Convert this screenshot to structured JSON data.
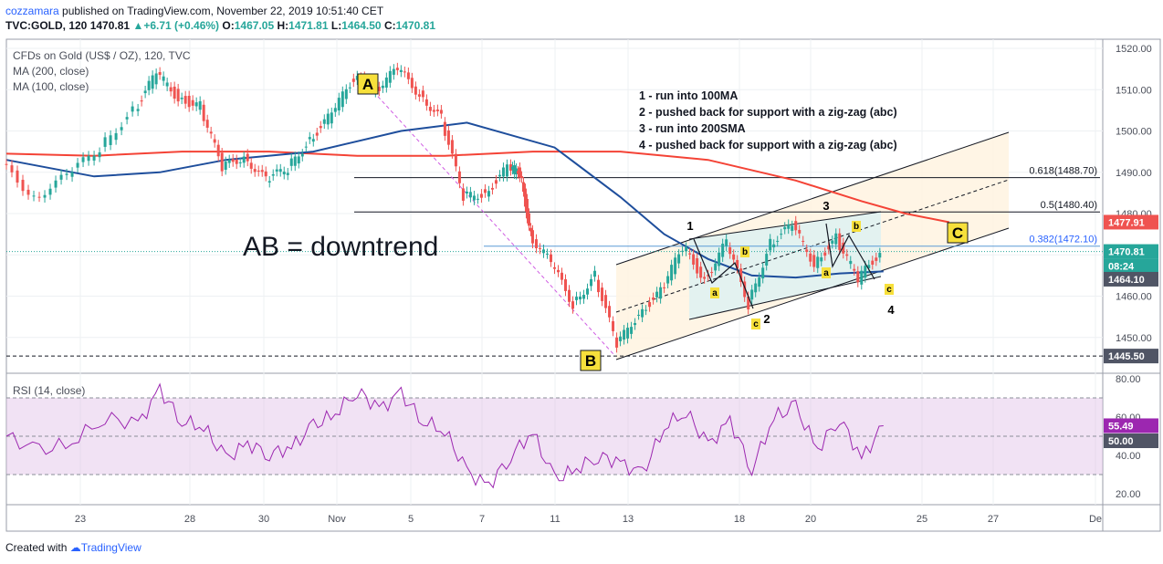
{
  "header": {
    "author": "cozzamara",
    "published_text": "published on TradingView.com, November 22, 2019 10:51:40 CET",
    "symbol_line": "TVC:GOLD, 120",
    "last": "1470.81",
    "change": "+6.71 (+0.46%)",
    "o_label": "O:",
    "o": "1467.05",
    "h_label": "H:",
    "h": "1471.81",
    "l_label": "L:",
    "l": "1464.50",
    "c_label": "C:",
    "c": "1470.81"
  },
  "legend": {
    "title": "CFDs on Gold (US$ / OZ), 120, TVC",
    "ma200": "MA (200, close)",
    "ma100": "MA (100, close)",
    "rsi": "RSI (14, close)"
  },
  "annotations": {
    "wave_a": "A",
    "wave_b": "B",
    "wave_c": "C",
    "downtrend": "AB = downtrend",
    "notes": [
      "1 - run into 100MA",
      "2 - pushed back for support with a zig-zag (abc)",
      "3 - run into 200SMA",
      "4 - pushed back for support with a zig-zag (abc)"
    ],
    "points": [
      "1",
      "2",
      "3",
      "4"
    ],
    "zigzag": [
      "a",
      "b",
      "c",
      "a",
      "b",
      "c"
    ]
  },
  "footer": {
    "created_with": "Created with",
    "brand": "TradingView"
  },
  "colors": {
    "up": "#26a69a",
    "down": "#ef5350",
    "ma200": "#f44336",
    "ma100": "#1e4e9c",
    "rsi": "#9c27b0",
    "rsi_band": "#e1bee7",
    "channel": "#fff3e0",
    "box": "#e0f2f1",
    "label_bg": "#f7e03b"
  },
  "chart_data": {
    "type": "line",
    "title": "CFDs on Gold (US$ / OZ), 120, TVC",
    "x_ticks": [
      "23",
      "28",
      "30",
      "Nov",
      "5",
      "7",
      "11",
      "13",
      "18",
      "20",
      "25",
      "27",
      "De"
    ],
    "price_axis": {
      "min": 1440,
      "max": 1520,
      "ticks": [
        1450,
        1460,
        1470,
        1480,
        1490,
        1500,
        1510,
        1520
      ]
    },
    "series": [
      {
        "name": "MA (200, close)",
        "x": [
          0,
          8,
          16,
          24,
          32,
          40,
          48,
          56,
          64,
          72,
          78,
          82,
          86
        ],
        "y": [
          1494.5,
          1494,
          1495,
          1495,
          1494,
          1494,
          1495,
          1495,
          1493,
          1488,
          1483,
          1480,
          1477.91
        ]
      },
      {
        "name": "MA (100, close)",
        "x": [
          0,
          8,
          14,
          20,
          28,
          36,
          42,
          50,
          56,
          60,
          64,
          68,
          72,
          76,
          80
        ],
        "y": [
          1493,
          1489,
          1490,
          1493,
          1495,
          1500,
          1502,
          1496,
          1484,
          1475,
          1469,
          1465,
          1464.5,
          1465.5,
          1466
        ]
      },
      {
        "name": "Price",
        "x": [
          0,
          3,
          6,
          9,
          12,
          14,
          16,
          18,
          20,
          22,
          24,
          26,
          28,
          30,
          32,
          34,
          36,
          38,
          40,
          42,
          44,
          46,
          47,
          48,
          50,
          52,
          54,
          56,
          58,
          60,
          62,
          64,
          66,
          68,
          70,
          72,
          74,
          76,
          78,
          80
        ],
        "y": [
          1492,
          1484,
          1489,
          1496,
          1505,
          1514,
          1508,
          1506,
          1491,
          1494,
          1488,
          1491,
          1498,
          1504,
          1513,
          1510,
          1515,
          1509,
          1503,
          1484,
          1485,
          1491,
          1490,
          1475,
          1468,
          1458,
          1465,
          1448,
          1456,
          1461,
          1472,
          1464,
          1473,
          1458,
          1473,
          1477,
          1468,
          1474,
          1464,
          1470.81
        ]
      }
    ],
    "price_labels": {
      "ma200": "1477.91",
      "last": "1470.81",
      "time_left": "08:24",
      "low": "1464.10",
      "support": "1445.50"
    },
    "fib_levels": [
      {
        "label": "0.618(1488.70)",
        "value": 1488.7
      },
      {
        "label": "0.5(1480.40)",
        "value": 1480.4
      },
      {
        "label": "0.382(1472.10)",
        "value": 1472.1
      }
    ],
    "rsi": {
      "name": "RSI (14, close)",
      "axis": {
        "min": 15,
        "max": 82,
        "ticks": [
          20,
          40,
          60,
          80
        ]
      },
      "levels": [
        30,
        50,
        70
      ],
      "last_label": "55.49",
      "mid_label": "50.00",
      "x": [
        0,
        3,
        6,
        9,
        12,
        14,
        16,
        18,
        20,
        22,
        24,
        26,
        28,
        30,
        32,
        34,
        36,
        38,
        40,
        42,
        44,
        46,
        48,
        50,
        52,
        54,
        56,
        58,
        60,
        62,
        64,
        66,
        68,
        70,
        72,
        74,
        76,
        78,
        80
      ],
      "y": [
        50,
        42,
        47,
        60,
        56,
        74,
        58,
        55,
        38,
        46,
        41,
        44,
        55,
        62,
        74,
        64,
        72,
        58,
        53,
        31,
        24,
        40,
        52,
        27,
        33,
        40,
        36,
        30,
        55,
        63,
        45,
        58,
        33,
        60,
        65,
        43,
        60,
        38,
        55.49
      ]
    }
  }
}
